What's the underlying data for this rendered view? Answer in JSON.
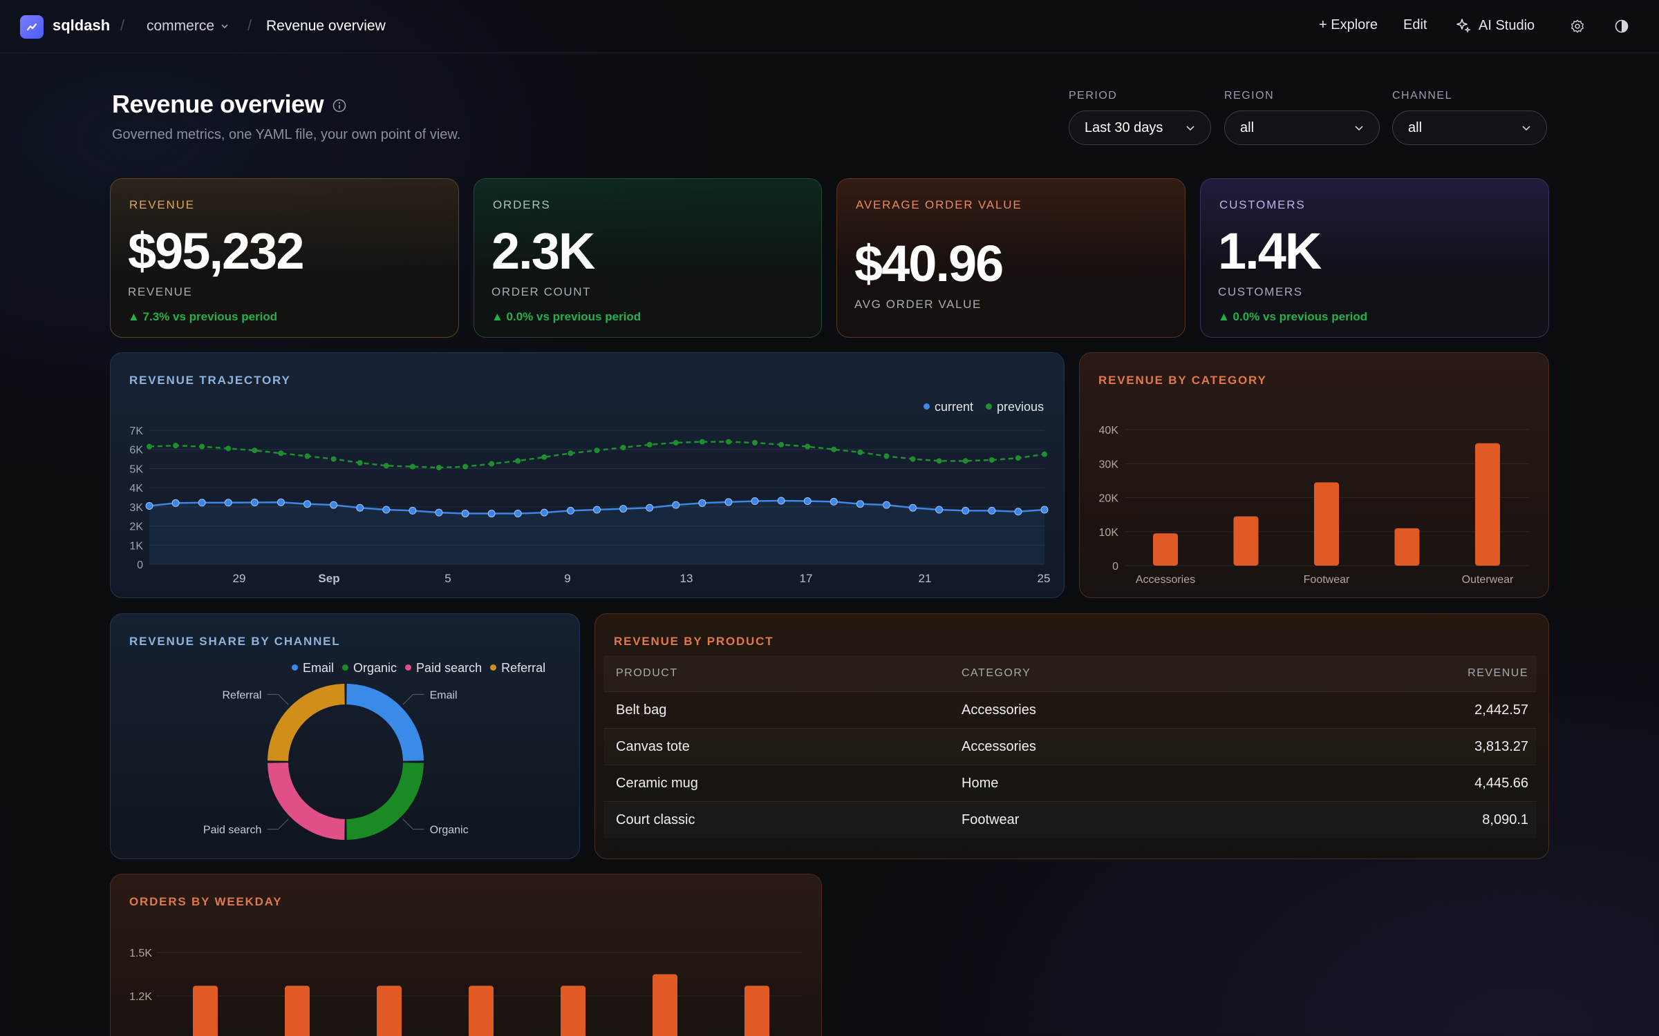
{
  "app": {
    "brand": "sqldash",
    "database": "commerce",
    "page": "Revenue overview"
  },
  "nav": {
    "explore": "+ Explore",
    "edit": "Edit",
    "ai_studio": "AI Studio"
  },
  "header": {
    "title": "Revenue overview",
    "subtitle": "Governed metrics, one YAML file, your own point of view."
  },
  "filters": [
    {
      "label": "PERIOD",
      "value": "Last 30 days"
    },
    {
      "label": "REGION",
      "value": "all"
    },
    {
      "label": "CHANNEL",
      "value": "all"
    }
  ],
  "kpis": [
    {
      "label": "REVENUE",
      "value": "$95,232",
      "sub": "REVENUE",
      "delta": "▲ 7.3% vs previous period",
      "accent": "#d08a2e"
    },
    {
      "label": "ORDERS",
      "value": "2.3K",
      "sub": "ORDER COUNT",
      "delta": "▲ 0.0% vs previous period",
      "accent": "#22b14a"
    },
    {
      "label": "AVERAGE ORDER VALUE",
      "value": "$40.96",
      "sub": "AVG ORDER VALUE",
      "delta": "",
      "accent": "#e0683a"
    },
    {
      "label": "CUSTOMERS",
      "value": "1.4K",
      "sub": "CUSTOMERS",
      "delta": "▲ 0.0% vs previous period",
      "accent": "#8a7cff"
    }
  ],
  "panels": {
    "trajectory": "REVENUE TRAJECTORY",
    "category": "REVENUE BY CATEGORY",
    "channel_share": "REVENUE SHARE BY CHANNEL",
    "product": "REVENUE BY PRODUCT",
    "weekday": "ORDERS BY WEEKDAY"
  },
  "colors": {
    "current": "#3d86e6",
    "previous": "#1f8f2e",
    "bar": "#e05a25",
    "email": "#3a8ae8",
    "organic": "#1a8a24",
    "paid": "#e04f85",
    "referral": "#d08f1a"
  },
  "chart_data": [
    {
      "type": "line",
      "title": "REVENUE TRAJECTORY",
      "x_ticks": [
        "29",
        "Sep",
        "5",
        "9",
        "13",
        "17",
        "21",
        "25"
      ],
      "y_ticks": [
        "0",
        "1K",
        "2K",
        "3K",
        "4K",
        "5K",
        "6K",
        "7K"
      ],
      "ylim": [
        0,
        7000
      ],
      "series": [
        {
          "name": "current",
          "values": [
            3050,
            3200,
            3220,
            3220,
            3230,
            3240,
            3150,
            3100,
            2950,
            2850,
            2800,
            2700,
            2650,
            2650,
            2650,
            2700,
            2800,
            2850,
            2900,
            2950,
            3100,
            3200,
            3250,
            3300,
            3320,
            3300,
            3270,
            3150,
            3100,
            2950,
            2850,
            2800,
            2800,
            2750,
            2850
          ]
        },
        {
          "name": "previous",
          "values": [
            6150,
            6200,
            6150,
            6050,
            5950,
            5800,
            5650,
            5500,
            5300,
            5150,
            5100,
            5050,
            5100,
            5250,
            5400,
            5600,
            5800,
            5950,
            6100,
            6250,
            6350,
            6400,
            6400,
            6350,
            6250,
            6150,
            6000,
            5850,
            5650,
            5500,
            5400,
            5400,
            5450,
            5550,
            5750
          ]
        }
      ]
    },
    {
      "type": "bar",
      "title": "REVENUE BY CATEGORY",
      "categories": [
        "Accessories",
        "",
        "Footwear",
        "",
        "Outerwear"
      ],
      "values": [
        9500,
        14500,
        24500,
        11000,
        36000
      ],
      "y_ticks": [
        "0",
        "10K",
        "20K",
        "30K",
        "40K"
      ],
      "ylim": [
        0,
        40000
      ]
    },
    {
      "type": "pie",
      "title": "REVENUE SHARE BY CHANNEL",
      "labels": [
        "Email",
        "Organic",
        "Paid search",
        "Referral"
      ],
      "values": [
        25,
        25,
        25,
        25
      ]
    },
    {
      "type": "table",
      "title": "REVENUE BY PRODUCT",
      "columns": [
        "PRODUCT",
        "CATEGORY",
        "REVENUE"
      ],
      "rows": [
        [
          "Belt bag",
          "Accessories",
          "2,442.57"
        ],
        [
          "Canvas tote",
          "Accessories",
          "3,813.27"
        ],
        [
          "Ceramic mug",
          "Home",
          "4,445.66"
        ],
        [
          "Court classic",
          "Footwear",
          "8,090.1"
        ]
      ]
    },
    {
      "type": "bar",
      "title": "ORDERS BY WEEKDAY",
      "y_ticks": [
        "1.2K",
        "1.5K"
      ],
      "values": [
        1270,
        1270,
        1270,
        1270,
        1270,
        1350,
        1270
      ]
    }
  ]
}
